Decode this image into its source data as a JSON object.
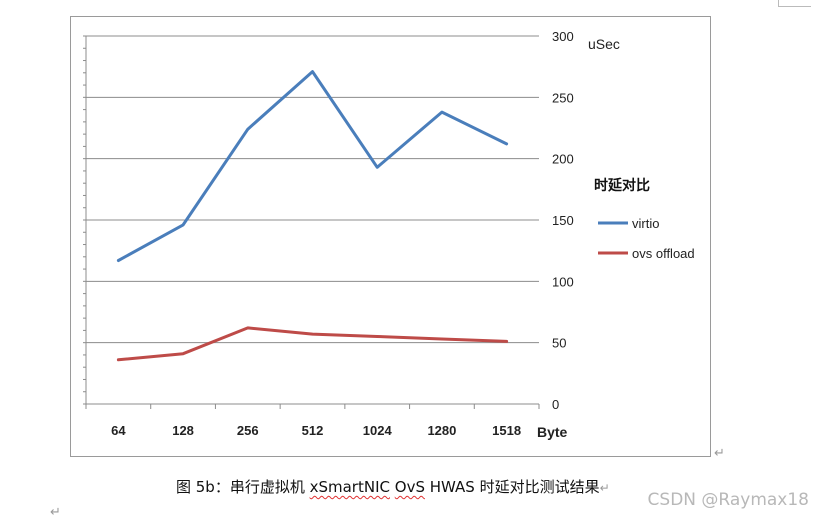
{
  "chart_data": {
    "type": "line",
    "categories": [
      "64",
      "128",
      "256",
      "512",
      "1024",
      "1280",
      "1518"
    ],
    "series": [
      {
        "name": "virtio",
        "values": [
          117,
          146,
          224,
          271,
          193,
          238,
          212
        ],
        "color": "#4a7ebb"
      },
      {
        "name": "ovs offload",
        "values": [
          36,
          41,
          62,
          57,
          55,
          53,
          51
        ],
        "color": "#be4b48"
      }
    ],
    "y_ticks": [
      "300",
      "250",
      "200",
      "150",
      "100",
      "50",
      "0"
    ],
    "ylim": [
      0,
      300
    ],
    "ylabel": "uSec",
    "xlabel": "Byte",
    "legend_title": "时延对比",
    "legend_position": "right",
    "grid": true,
    "y_axis_side": "right"
  },
  "caption": {
    "prefix": "图 5b：串行虚拟机 ",
    "word1": "xSmartNIC",
    "word2": "OvS",
    "suffix": " HWAS 时延对比测试结果",
    "end_mark": "↵"
  },
  "watermark": "CSDN @Raymax18",
  "para_marks": {
    "frame_mark": "↵",
    "left_mark": "↵"
  }
}
